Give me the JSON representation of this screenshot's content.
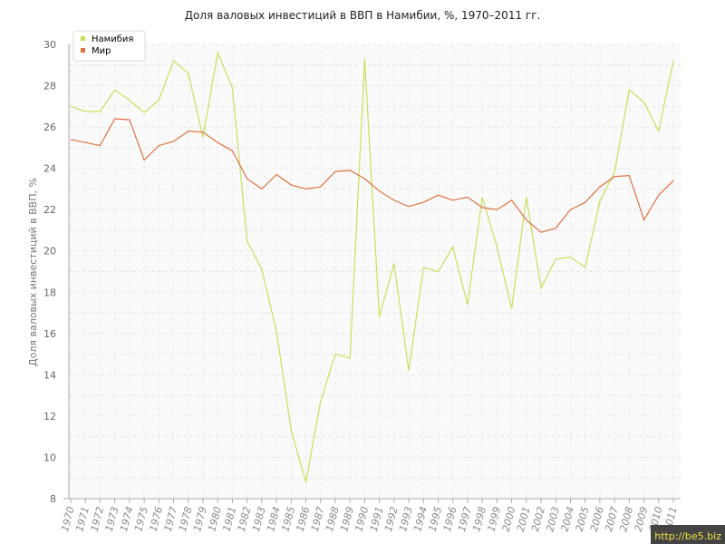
{
  "chart_data": {
    "type": "line",
    "title": "Доля валовых инвестиций в ВВП в Намибии, %, 1970–2011 гг.",
    "xlabel": "",
    "ylabel": "Доля валовых инвестиций в ВВП, %",
    "ylim": [
      8,
      30
    ],
    "yticks": [
      "8",
      "10",
      "12",
      "14",
      "16",
      "18",
      "20",
      "22",
      "24",
      "26",
      "28",
      "30"
    ],
    "grid": true,
    "legend_position": "top-left",
    "categories": [
      "1970",
      "1971",
      "1972",
      "1973",
      "1974",
      "1975",
      "1976",
      "1977",
      "1978",
      "1979",
      "1980",
      "1981",
      "1982",
      "1983",
      "1984",
      "1985",
      "1986",
      "1987",
      "1988",
      "1989",
      "1990",
      "1991",
      "1992",
      "1993",
      "1994",
      "1995",
      "1996",
      "1997",
      "1998",
      "1999",
      "2000",
      "2001",
      "2002",
      "2003",
      "2004",
      "2005",
      "2006",
      "2007",
      "2008",
      "2009",
      "2010",
      "2011"
    ],
    "series": [
      {
        "name": "Намибия",
        "color": "#c8e05a",
        "values": [
          27.0,
          26.75,
          26.75,
          27.8,
          27.3,
          26.7,
          27.3,
          29.2,
          28.6,
          25.5,
          29.6,
          27.9,
          20.5,
          19.1,
          16.1,
          11.3,
          8.8,
          12.7,
          15.0,
          14.8,
          29.3,
          16.8,
          19.4,
          14.2,
          19.2,
          19.0,
          20.2,
          17.4,
          22.6,
          20.2,
          17.2,
          22.6,
          18.2,
          19.6,
          19.7,
          19.2,
          22.4,
          23.8,
          27.8,
          27.2,
          25.8,
          29.2
        ]
      },
      {
        "name": "Мир",
        "color": "#e07040",
        "values": [
          25.4,
          25.25,
          25.1,
          26.4,
          26.35,
          24.4,
          25.1,
          25.3,
          25.8,
          25.75,
          25.25,
          24.85,
          23.5,
          23.0,
          23.7,
          23.2,
          23.0,
          23.1,
          23.85,
          23.9,
          23.5,
          22.9,
          22.45,
          22.15,
          22.35,
          22.7,
          22.45,
          22.6,
          22.1,
          22.0,
          22.45,
          21.5,
          20.9,
          21.1,
          22.0,
          22.35,
          23.1,
          23.6,
          23.65,
          21.5,
          22.7,
          23.4
        ]
      }
    ]
  },
  "watermark": "http://be5.biz"
}
